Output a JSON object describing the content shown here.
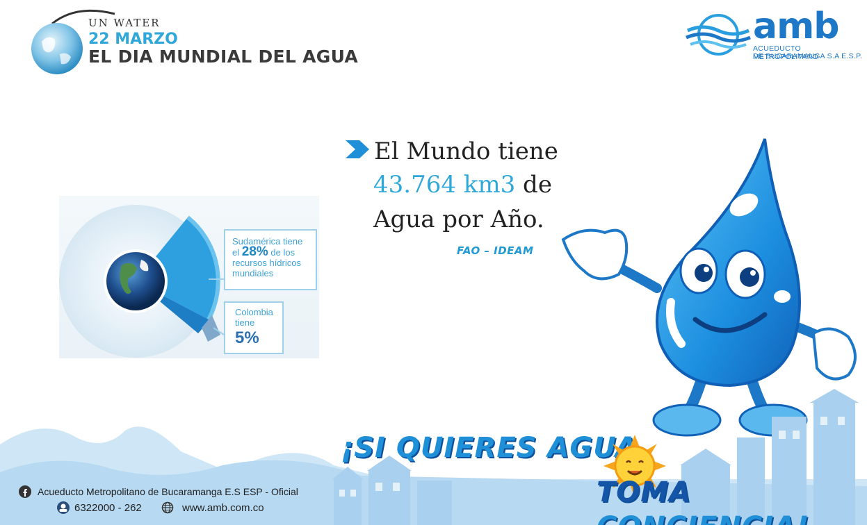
{
  "header": {
    "org_line": "UN WATER",
    "date": "22 MARZO",
    "event": "EL DIA MUNDIAL DEL AGUA"
  },
  "brand": {
    "name": "amb",
    "subtitle_line1": "ACUEDUCTO METROPOLITANO",
    "subtitle_line2": "DE BUCARAMANGA S.A E.S.P.",
    "color": "#1e78c8"
  },
  "infographic": {
    "south_america": {
      "prefix": "Sudamérica tiene",
      "pre_value": "el",
      "value": "28%",
      "suffix": "de los recursos hídricos mundiales"
    },
    "colombia": {
      "label": "Colombia tiene",
      "value": "5%"
    }
  },
  "statement": {
    "line1": "El Mundo tiene",
    "highlight": "43.764 km3",
    "line2_rest": " de",
    "line3": "Agua por Año.",
    "source": "FAO – IDEAM",
    "highlight_color": "#2fa7d8"
  },
  "slogan": {
    "line1": "¡SI QUIERES AGUA,",
    "line2_part1": "TOMA",
    "line2_part2": " CONCIENCIA!"
  },
  "contact": {
    "facebook": "Acueducto Metropolitano de Bucaramanga E.S ESP - Oficial",
    "phone": "6322000 - 262",
    "website": "www.amb.com.co"
  },
  "icons": [
    "globe-icon",
    "arrow-right-icon",
    "sun-icon",
    "facebook-icon",
    "phone-icon",
    "globe-web-icon",
    "water-drop-mascot"
  ]
}
